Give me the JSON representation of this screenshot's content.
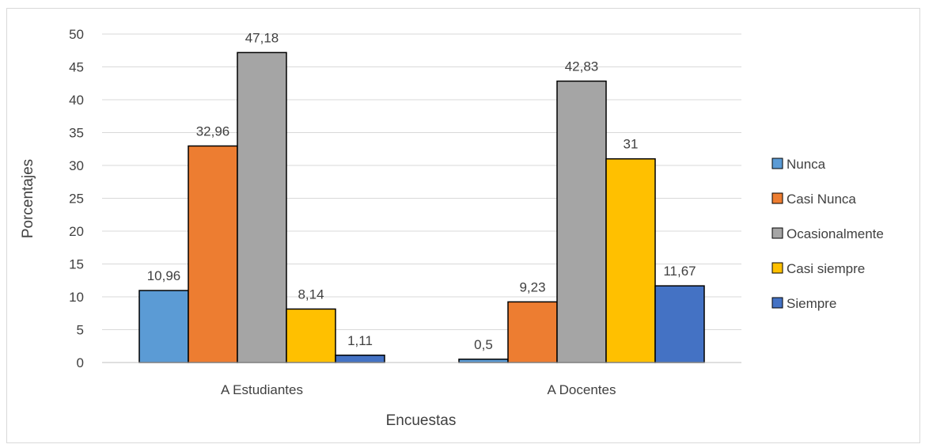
{
  "chart_data": {
    "type": "bar",
    "title": "",
    "xlabel": "Encuestas",
    "ylabel": "Porcentajes",
    "ylim": [
      0,
      50
    ],
    "yticks": [
      0,
      5,
      10,
      15,
      20,
      25,
      30,
      35,
      40,
      45,
      50
    ],
    "grid": true,
    "legend_position": "right",
    "categories": [
      "A Estudiantes",
      "A Docentes"
    ],
    "series": [
      {
        "name": "Nunca",
        "color": "#5B9BD5",
        "values": [
          10.96,
          0.5
        ],
        "labels": [
          "10,96",
          "0,5"
        ]
      },
      {
        "name": "Casi Nunca",
        "color": "#ED7D31",
        "values": [
          32.96,
          9.23
        ],
        "labels": [
          "32,96",
          "9,23"
        ]
      },
      {
        "name": "Ocasionalmente",
        "color": "#A5A5A5",
        "values": [
          47.18,
          42.83
        ],
        "labels": [
          "47,18",
          "42,83"
        ]
      },
      {
        "name": "Casi siempre",
        "color": "#FFC000",
        "values": [
          8.14,
          31
        ],
        "labels": [
          "8,14",
          "31"
        ]
      },
      {
        "name": "Siempre",
        "color": "#4472C4",
        "values": [
          1.11,
          11.67
        ],
        "labels": [
          "1,11",
          "11,67"
        ]
      }
    ]
  }
}
